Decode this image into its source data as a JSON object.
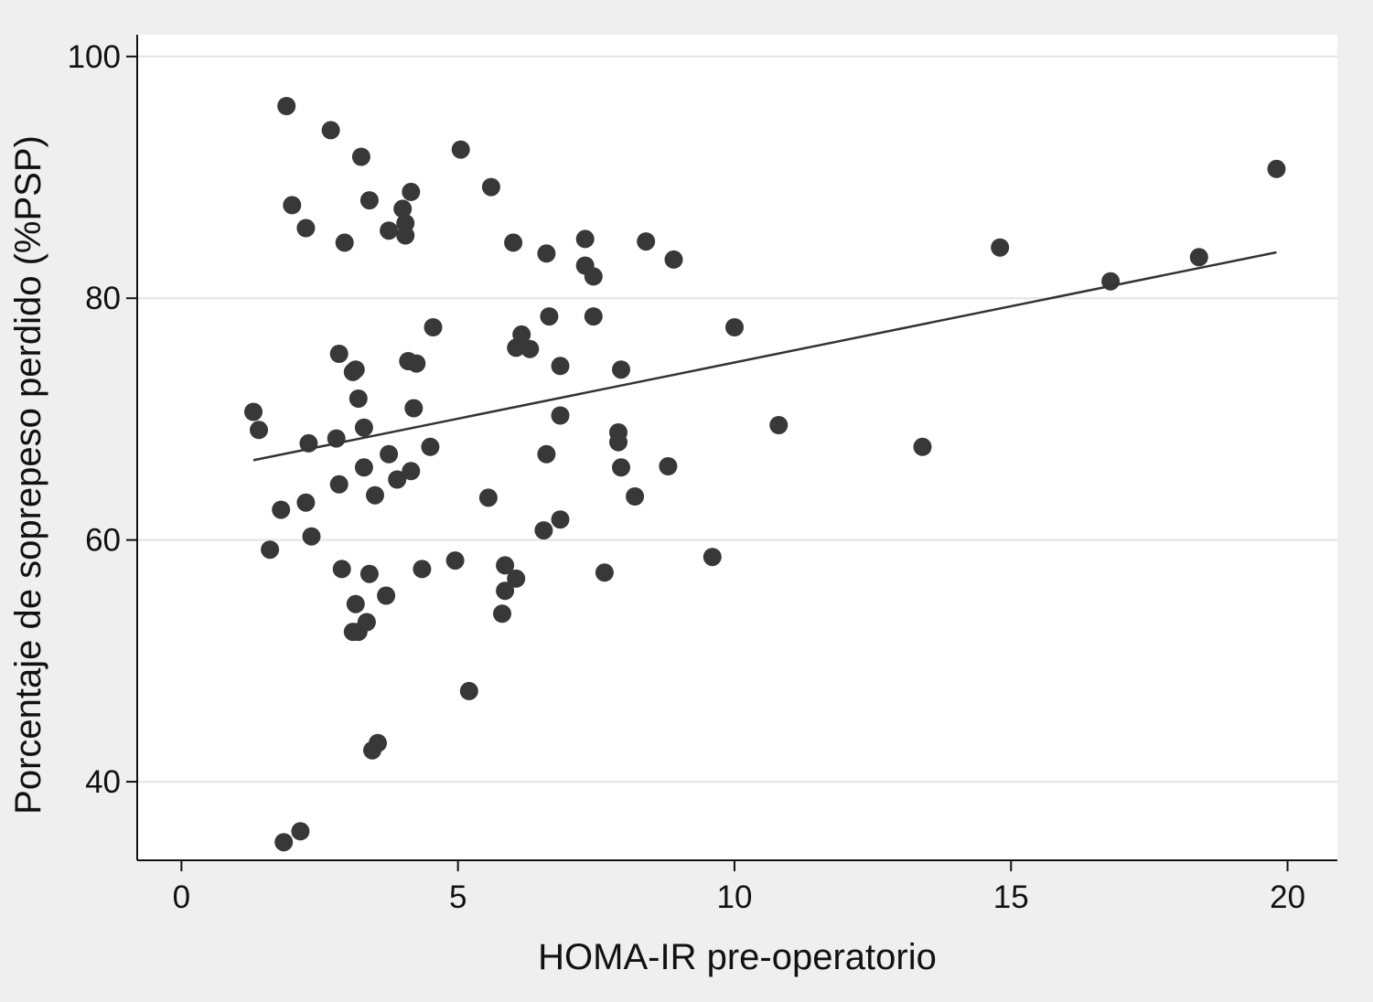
{
  "chart_data": {
    "type": "scatter",
    "title": "",
    "xlabel": "HOMA-IR pre-operatorio",
    "ylabel": "Porcentaje de soprepeso perdido (%PSP)",
    "xlim": [
      -0.8,
      20.9
    ],
    "ylim": [
      33.5,
      101.8
    ],
    "xticks": [
      0,
      5,
      10,
      15,
      20
    ],
    "yticks": [
      40,
      60,
      80,
      100
    ],
    "grid": true,
    "legend": "none",
    "colors": {
      "background": "#efefef",
      "plot_background": "#ffffff",
      "grid": "#e8e8e8",
      "marker": "#383838",
      "fit_line": "#333333",
      "axis": "#111111"
    },
    "series": [
      {
        "marker": "circle",
        "points": [
          [
            1.3,
            70.6
          ],
          [
            1.4,
            69.1
          ],
          [
            1.6,
            59.2
          ],
          [
            1.8,
            62.5
          ],
          [
            1.85,
            35.0
          ],
          [
            1.9,
            95.9
          ],
          [
            2.0,
            87.7
          ],
          [
            2.15,
            35.9
          ],
          [
            2.25,
            85.8
          ],
          [
            2.25,
            63.1
          ],
          [
            2.3,
            68.0
          ],
          [
            2.35,
            60.3
          ],
          [
            2.7,
            93.9
          ],
          [
            2.8,
            68.4
          ],
          [
            2.85,
            64.6
          ],
          [
            2.85,
            75.4
          ],
          [
            2.9,
            57.6
          ],
          [
            2.95,
            84.6
          ],
          [
            3.1,
            52.4
          ],
          [
            3.1,
            73.9
          ],
          [
            3.15,
            74.1
          ],
          [
            3.15,
            54.7
          ],
          [
            3.2,
            71.7
          ],
          [
            3.2,
            52.4
          ],
          [
            3.25,
            91.7
          ],
          [
            3.3,
            69.3
          ],
          [
            3.3,
            66.0
          ],
          [
            3.35,
            53.2
          ],
          [
            3.4,
            88.1
          ],
          [
            3.4,
            57.2
          ],
          [
            3.45,
            42.6
          ],
          [
            3.55,
            43.2
          ],
          [
            3.5,
            63.7
          ],
          [
            3.7,
            55.4
          ],
          [
            3.75,
            85.6
          ],
          [
            3.75,
            67.1
          ],
          [
            3.9,
            65.0
          ],
          [
            4.0,
            87.4
          ],
          [
            4.05,
            86.2
          ],
          [
            4.05,
            85.2
          ],
          [
            4.1,
            74.8
          ],
          [
            4.15,
            88.8
          ],
          [
            4.15,
            65.7
          ],
          [
            4.2,
            70.9
          ],
          [
            4.25,
            74.6
          ],
          [
            4.35,
            57.6
          ],
          [
            4.5,
            67.7
          ],
          [
            4.55,
            77.6
          ],
          [
            4.95,
            58.3
          ],
          [
            5.05,
            92.3
          ],
          [
            5.2,
            47.5
          ],
          [
            5.55,
            63.5
          ],
          [
            5.6,
            89.2
          ],
          [
            5.8,
            53.9
          ],
          [
            5.85,
            57.9
          ],
          [
            5.85,
            55.8
          ],
          [
            6.0,
            84.6
          ],
          [
            6.05,
            75.9
          ],
          [
            6.05,
            56.8
          ],
          [
            6.15,
            77.0
          ],
          [
            6.3,
            75.8
          ],
          [
            6.55,
            60.8
          ],
          [
            6.6,
            83.7
          ],
          [
            6.6,
            67.1
          ],
          [
            6.65,
            78.5
          ],
          [
            6.85,
            74.4
          ],
          [
            6.85,
            70.3
          ],
          [
            6.85,
            61.7
          ],
          [
            7.3,
            84.9
          ],
          [
            7.3,
            82.7
          ],
          [
            7.45,
            81.8
          ],
          [
            7.45,
            78.5
          ],
          [
            7.65,
            57.3
          ],
          [
            7.9,
            68.9
          ],
          [
            7.9,
            68.1
          ],
          [
            7.95,
            74.1
          ],
          [
            7.95,
            66.0
          ],
          [
            8.2,
            63.6
          ],
          [
            8.4,
            84.7
          ],
          [
            8.8,
            66.1
          ],
          [
            8.9,
            83.2
          ],
          [
            9.6,
            58.6
          ],
          [
            10.0,
            77.6
          ],
          [
            10.8,
            69.5
          ],
          [
            13.4,
            67.7
          ],
          [
            14.8,
            84.2
          ],
          [
            16.8,
            81.4
          ],
          [
            18.4,
            83.4
          ],
          [
            19.8,
            90.7
          ]
        ]
      }
    ],
    "fit_line": {
      "x": [
        1.3,
        19.8
      ],
      "y": [
        66.6,
        83.8
      ]
    }
  }
}
